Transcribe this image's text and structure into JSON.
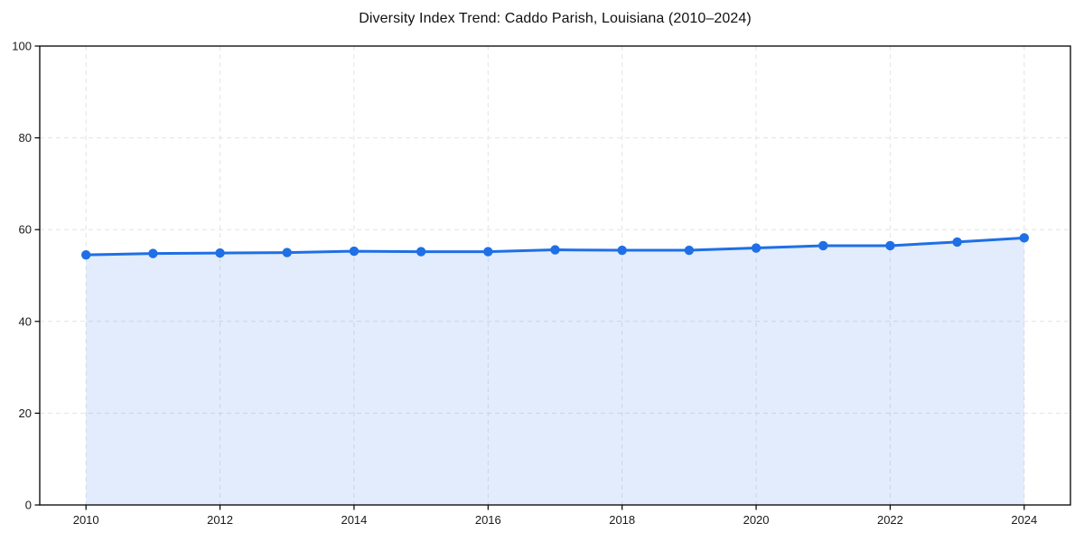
{
  "page": {
    "background": "#ffffff"
  },
  "header": {
    "title": "Diversity Index Trend: Caddo Parish, Louisiana (2010–2024)"
  },
  "chart_data": {
    "type": "line",
    "title": "Diversity Index Trend: Caddo Parish, Louisiana (2010–2024)",
    "xlabel": "",
    "ylabel": "",
    "x": [
      2010,
      2011,
      2012,
      2013,
      2014,
      2015,
      2016,
      2017,
      2018,
      2019,
      2020,
      2021,
      2022,
      2023,
      2024
    ],
    "series": [
      {
        "name": "Diversity Index",
        "values": [
          54.5,
          54.8,
          54.9,
          55.0,
          55.3,
          55.2,
          55.2,
          55.6,
          55.5,
          55.5,
          56.0,
          56.5,
          56.5,
          57.3,
          58.2
        ]
      }
    ],
    "ylim": [
      0,
      100
    ],
    "xlim": [
      2009.31,
      2024.69
    ],
    "yticks": [
      0,
      20,
      40,
      60,
      80,
      100
    ],
    "xticks": [
      2010,
      2012,
      2014,
      2016,
      2018,
      2020,
      2022,
      2024
    ],
    "grid": "dashed",
    "legend": "none",
    "area_fill": true,
    "marker": "circle",
    "colors": {
      "line": "#1f6fe6",
      "marker": "#1f6fe6",
      "area_opacity": 0.13,
      "grid": "#e4e4e4",
      "axis": "#000000",
      "tick_text": "#1a1a1a",
      "title_text": "#111111"
    }
  }
}
